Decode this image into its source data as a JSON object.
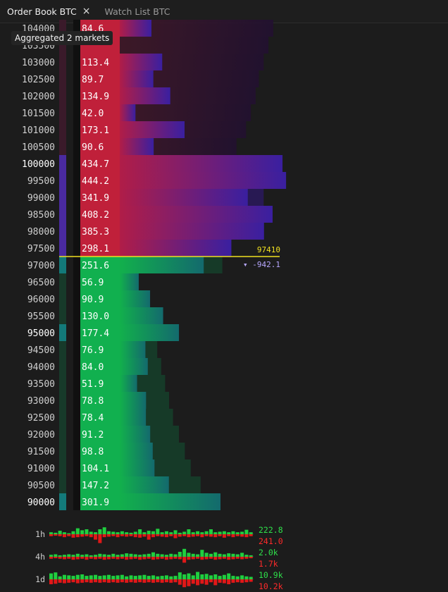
{
  "tabs": [
    {
      "label": "Order Book BTC",
      "active": true
    },
    {
      "label": "Watch List BTC",
      "active": false
    }
  ],
  "close_icon": "×",
  "aggregation_label": "Aggregated 2 markets",
  "last_price": "97410",
  "price_change": "▾ -942.1",
  "colors": {
    "ask_dark": "#2a1424",
    "ask_red": "#c0203a",
    "bid_green": "#11b04f",
    "wall_purple": "#3a1fa0",
    "wall_teal": "#136a6d",
    "last_price_line": "#f0e020"
  },
  "asks": [
    {
      "price": "104000",
      "qty": "84.6"
    },
    {
      "price": "103500",
      "qty": ""
    },
    {
      "price": "103000",
      "qty": "113.4"
    },
    {
      "price": "102500",
      "qty": "89.7"
    },
    {
      "price": "102000",
      "qty": "134.9"
    },
    {
      "price": "101500",
      "qty": "42.0"
    },
    {
      "price": "101000",
      "qty": "173.1"
    },
    {
      "price": "100500",
      "qty": "90.6"
    },
    {
      "price": "100000",
      "qty": "434.7"
    },
    {
      "price": "99500",
      "qty": "444.2"
    },
    {
      "price": "99000",
      "qty": "341.9"
    },
    {
      "price": "98500",
      "qty": "408.2"
    },
    {
      "price": "98000",
      "qty": "385.3"
    },
    {
      "price": "97500",
      "qty": "298.1"
    }
  ],
  "bids": [
    {
      "price": "97000",
      "qty": "251.6"
    },
    {
      "price": "96500",
      "qty": "56.9"
    },
    {
      "price": "96000",
      "qty": "90.9"
    },
    {
      "price": "95500",
      "qty": "130.0"
    },
    {
      "price": "95000",
      "qty": "177.4"
    },
    {
      "price": "94500",
      "qty": "76.9"
    },
    {
      "price": "94000",
      "qty": "84.0"
    },
    {
      "price": "93500",
      "qty": "51.9"
    },
    {
      "price": "93000",
      "qty": "78.8"
    },
    {
      "price": "92500",
      "qty": "78.4"
    },
    {
      "price": "92000",
      "qty": "91.2"
    },
    {
      "price": "91500",
      "qty": "98.8"
    },
    {
      "price": "91000",
      "qty": "104.1"
    },
    {
      "price": "90500",
      "qty": "147.2"
    },
    {
      "price": "90000",
      "qty": "301.9"
    }
  ],
  "ask_cumulative_level": [
    0.96,
    0.93,
    0.9,
    0.87,
    0.85,
    0.82,
    0.79,
    0.73,
    1.0,
    1.0,
    0.9,
    0.82,
    0.72,
    0.6
  ],
  "bid_cumulative_level": [
    0.52,
    0.05,
    0.09,
    0.13,
    0.16,
    0.19,
    0.21,
    0.23,
    0.25,
    0.27,
    0.3,
    0.33,
    0.36,
    0.41,
    0.5
  ],
  "spark_rows": [
    {
      "label": "1h",
      "buy": "222.8",
      "sell": "241.0",
      "buy_bars": [
        0.2,
        0.15,
        0.35,
        0.2,
        0.1,
        0.3,
        0.6,
        0.4,
        0.5,
        0.25,
        0.2,
        0.5,
        0.7,
        0.3,
        0.25,
        0.2,
        0.3,
        0.2,
        0.15,
        0.25,
        0.5,
        0.2,
        0.35,
        0.3,
        0.55,
        0.2,
        0.3,
        0.2,
        0.4,
        0.15,
        0.25,
        0.5,
        0.2,
        0.3,
        0.2,
        0.3,
        0.5,
        0.2,
        0.25,
        0.3,
        0.2,
        0.3,
        0.2,
        0.25,
        0.45,
        0.2
      ],
      "sell_bars": [
        0.2,
        0.15,
        0.2,
        0.3,
        0.2,
        0.35,
        0.3,
        0.25,
        0.2,
        0.3,
        0.55,
        0.9,
        0.3,
        0.25,
        0.2,
        0.3,
        0.2,
        0.25,
        0.2,
        0.3,
        0.35,
        0.25,
        0.55,
        0.3,
        0.2,
        0.25,
        0.3,
        0.2,
        0.4,
        0.25,
        0.2,
        0.3,
        0.25,
        0.2,
        0.3,
        0.2,
        0.25,
        0.3,
        0.2,
        0.35,
        0.2,
        0.3,
        0.2,
        0.25,
        0.3,
        0.2
      ]
    },
    {
      "label": "4h",
      "buy": "2.0k",
      "sell": "1.7k",
      "buy_bars": [
        0.2,
        0.25,
        0.15,
        0.2,
        0.25,
        0.2,
        0.3,
        0.2,
        0.25,
        0.15,
        0.2,
        0.3,
        0.25,
        0.2,
        0.3,
        0.2,
        0.25,
        0.35,
        0.3,
        0.25,
        0.2,
        0.25,
        0.3,
        0.45,
        0.3,
        0.25,
        0.2,
        0.3,
        0.25,
        0.5,
        0.8,
        0.4,
        0.3,
        0.25,
        0.7,
        0.4,
        0.3,
        0.45,
        0.3,
        0.25,
        0.35,
        0.3,
        0.25,
        0.4,
        0.2,
        0.15
      ],
      "sell_bars": [
        0.2,
        0.15,
        0.2,
        0.25,
        0.2,
        0.3,
        0.25,
        0.2,
        0.3,
        0.2,
        0.25,
        0.2,
        0.3,
        0.25,
        0.2,
        0.25,
        0.2,
        0.3,
        0.25,
        0.2,
        0.3,
        0.25,
        0.2,
        0.3,
        0.25,
        0.2,
        0.3,
        0.25,
        0.2,
        0.25,
        0.6,
        0.3,
        0.25,
        0.2,
        0.3,
        0.25,
        0.2,
        0.3,
        0.25,
        0.2,
        0.3,
        0.25,
        0.2,
        0.25,
        0.2,
        0.15
      ]
    },
    {
      "label": "1d",
      "buy": "10.9k",
      "sell": "10.2k",
      "buy_bars": [
        0.6,
        0.7,
        0.3,
        0.45,
        0.4,
        0.35,
        0.45,
        0.5,
        0.35,
        0.4,
        0.45,
        0.35,
        0.4,
        0.45,
        0.35,
        0.4,
        0.45,
        0.3,
        0.4,
        0.35,
        0.4,
        0.45,
        0.35,
        0.4,
        0.3,
        0.35,
        0.4,
        0.3,
        0.35,
        0.7,
        0.5,
        0.6,
        0.4,
        0.75,
        0.5,
        0.55,
        0.4,
        0.5,
        0.35,
        0.45,
        0.6,
        0.35,
        0.3,
        0.4,
        0.3,
        0.25
      ],
      "sell_bars": [
        0.5,
        0.45,
        0.35,
        0.4,
        0.35,
        0.3,
        0.4,
        0.35,
        0.3,
        0.35,
        0.3,
        0.35,
        0.3,
        0.35,
        0.3,
        0.35,
        0.3,
        0.35,
        0.3,
        0.35,
        0.3,
        0.35,
        0.3,
        0.35,
        0.3,
        0.35,
        0.3,
        0.35,
        0.3,
        0.55,
        0.8,
        0.7,
        0.45,
        0.6,
        0.45,
        0.55,
        0.3,
        0.6,
        0.35,
        0.4,
        0.5,
        0.35,
        0.3,
        0.35,
        0.3,
        0.25
      ]
    }
  ]
}
